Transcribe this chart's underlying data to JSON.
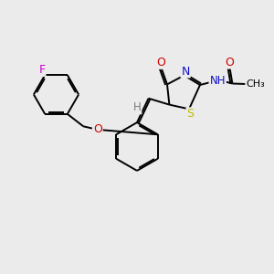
{
  "background_color": "#ebebeb",
  "figsize": [
    3.0,
    3.0
  ],
  "dpi": 100,
  "atom_colors": {
    "C": "#000000",
    "H": "#7a7a7a",
    "N": "#1010cc",
    "O": "#cc0000",
    "S": "#bbbb00",
    "F": "#cc00cc"
  },
  "bond_color": "#000000",
  "bond_width": 1.4
}
